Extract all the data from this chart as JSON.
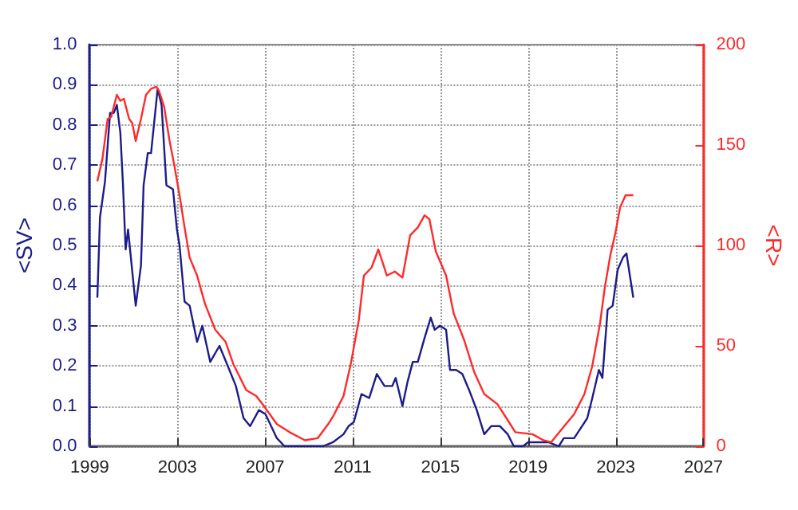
{
  "chart_data": {
    "type": "line",
    "ylabel": "<SV>",
    "y2label": "<R>",
    "xlim": [
      1999,
      2027
    ],
    "xticks": [
      1999,
      2003,
      2007,
      2011,
      2015,
      2019,
      2023,
      2027
    ],
    "ylim": [
      0,
      1
    ],
    "yticks": [
      {
        "value": 0,
        "label": "0.0"
      },
      {
        "value": 0.1,
        "label": "0.1"
      },
      {
        "value": 0.2,
        "label": "0.2"
      },
      {
        "value": 0.3,
        "label": "0.3"
      },
      {
        "value": 0.4,
        "label": "0.4"
      },
      {
        "value": 0.5,
        "label": "0.5"
      },
      {
        "value": 0.6,
        "label": "0.6"
      },
      {
        "value": 0.7,
        "label": "0.7"
      },
      {
        "value": 0.8,
        "label": "0.8"
      },
      {
        "value": 0.9,
        "label": "0.9"
      },
      {
        "value": 1,
        "label": "1.0"
      }
    ],
    "y2lim": [
      0,
      200
    ],
    "y2ticks": [
      0,
      50,
      100,
      150,
      200
    ],
    "grid": true,
    "marker": "none",
    "line_style": "solid",
    "series": [
      {
        "color": "#1c1c8a",
        "x": [
          1999.35,
          1999.47,
          1999.7,
          1999.93,
          2000.1,
          2000.24,
          2000.4,
          2000.52,
          2000.64,
          2000.75,
          2001.1,
          2001.34,
          2001.46,
          2001.65,
          2001.8,
          2002.1,
          2002.28,
          2002.5,
          2002.8,
          2002.98,
          2003.1,
          2003.33,
          2003.56,
          2003.9,
          2004.14,
          2004.5,
          2004.92,
          2005.3,
          2005.67,
          2006.02,
          2006.32,
          2006.72,
          2007.02,
          2007.54,
          2007.89,
          2009.64,
          2010.1,
          2010.58,
          2010.81,
          2011.05,
          2011.4,
          2011.75,
          2012.1,
          2012.45,
          2012.8,
          2012.96,
          2013.27,
          2013.5,
          2013.74,
          2013.97,
          2014.28,
          2014.56,
          2014.74,
          2014.98,
          2015.26,
          2015.44,
          2015.72,
          2016.0,
          2016.31,
          2016.66,
          2017.0,
          2017.32,
          2017.72,
          2018.07,
          2018.35,
          2018.77,
          2019.0,
          2019.7,
          2019.93,
          2020.4,
          2020.63,
          2021.1,
          2021.46,
          2021.7,
          2021.93,
          2022.23,
          2022.39,
          2022.63,
          2022.86,
          2023.09,
          2023.33,
          2023.49,
          2023.63,
          2023.8
        ],
        "values": [
          0.37,
          0.57,
          0.66,
          0.83,
          0.83,
          0.85,
          0.78,
          0.65,
          0.49,
          0.54,
          0.35,
          0.45,
          0.65,
          0.73,
          0.73,
          0.89,
          0.85,
          0.65,
          0.64,
          0.54,
          0.5,
          0.36,
          0.35,
          0.26,
          0.3,
          0.21,
          0.25,
          0.2,
          0.15,
          0.07,
          0.05,
          0.09,
          0.08,
          0.02,
          0,
          0,
          0.01,
          0.03,
          0.05,
          0.06,
          0.13,
          0.12,
          0.18,
          0.15,
          0.15,
          0.17,
          0.1,
          0.16,
          0.21,
          0.21,
          0.27,
          0.32,
          0.29,
          0.3,
          0.29,
          0.19,
          0.19,
          0.18,
          0.14,
          0.09,
          0.03,
          0.05,
          0.05,
          0.03,
          0,
          0,
          0.01,
          0.01,
          0.01,
          0,
          0.02,
          0.02,
          0.05,
          0.07,
          0.12,
          0.19,
          0.17,
          0.34,
          0.35,
          0.44,
          0.47,
          0.48,
          0.43,
          0.37
        ]
      },
      {
        "color": "#ff2a2a",
        "axis": "y2",
        "x": [
          1999.35,
          1999.58,
          1999.82,
          1999.98,
          2000.24,
          2000.4,
          2000.56,
          2000.8,
          2000.94,
          2001.1,
          2001.34,
          2001.57,
          2001.8,
          2002.04,
          2002.16,
          2002.4,
          2002.63,
          2002.86,
          2003.1,
          2003.33,
          2003.56,
          2003.9,
          2004.26,
          2004.73,
          2005.2,
          2005.55,
          2006.14,
          2006.6,
          2006.95,
          2007.54,
          2008.12,
          2008.82,
          2009.4,
          2009.88,
          2010.11,
          2010.58,
          2010.93,
          2011.28,
          2011.51,
          2011.86,
          2012.17,
          2012.56,
          2012.92,
          2013.27,
          2013.62,
          2013.97,
          2014.28,
          2014.5,
          2014.79,
          2015.26,
          2015.61,
          2016.08,
          2016.54,
          2017.0,
          2017.6,
          2018.07,
          2018.42,
          2019.2,
          2019.7,
          2020.05,
          2020.5,
          2021.1,
          2021.57,
          2021.93,
          2022.28,
          2022.5,
          2022.75,
          2022.98,
          2023.2,
          2023.45,
          2023.8
        ],
        "values": [
          132,
          143,
          163,
          164,
          175,
          172,
          173,
          163,
          161,
          152,
          163,
          175,
          178,
          179,
          177,
          169,
          153,
          140,
          125,
          109,
          94,
          85,
          71,
          58,
          52,
          41,
          28,
          25,
          20,
          11,
          7,
          3,
          4,
          11,
          15,
          25,
          42,
          63,
          85,
          89,
          98,
          85,
          87,
          84,
          105,
          109,
          115,
          113,
          97,
          85,
          66,
          53,
          37,
          26,
          21,
          13,
          7,
          6,
          3,
          2,
          8,
          16,
          26,
          40,
          61,
          79,
          95,
          106,
          119,
          125,
          125
        ]
      }
    ]
  }
}
